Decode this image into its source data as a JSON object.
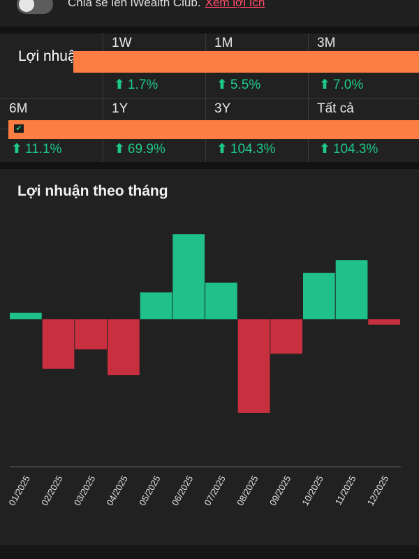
{
  "share": {
    "text": "Chia sẻ lên iWealth Club.",
    "link": "Xem lợi ích",
    "toggle_on": false
  },
  "returns": {
    "title": "Lợi nhuậ",
    "periods": [
      {
        "label": "1W",
        "value": "1.7%"
      },
      {
        "label": "1M",
        "value": "5.5%"
      },
      {
        "label": "3M",
        "value": "7.0%"
      },
      {
        "label": "6M",
        "value": "11.1%"
      },
      {
        "label": "1Y",
        "value": "69.9%"
      },
      {
        "label": "3Y",
        "value": "104.3%"
      },
      {
        "label": "Tất cả",
        "value": "104.3%"
      }
    ],
    "up_arrow": "⬆"
  },
  "chart_data": {
    "type": "bar",
    "title": "Lợi nhuận theo tháng",
    "categories": [
      "01/2025",
      "02/2025",
      "03/2025",
      "04/2025",
      "05/2025",
      "06/2025",
      "07/2025",
      "08/2025",
      "09/2025",
      "10/2025",
      "11/2025",
      "12/2025"
    ],
    "values": [
      0.6,
      -4.6,
      -2.8,
      -5.2,
      2.5,
      7.9,
      3.4,
      -8.7,
      -3.2,
      4.3,
      5.5,
      -0.5
    ],
    "ylim": [
      -13.7,
      8.5
    ],
    "grid": false,
    "colors": {
      "positive": "#1fc08a",
      "negative": "#c9303f"
    }
  },
  "colors": {
    "accent_up": "#1fc98a",
    "link": "#ff4d6a",
    "redaction": "#fd7d42"
  }
}
